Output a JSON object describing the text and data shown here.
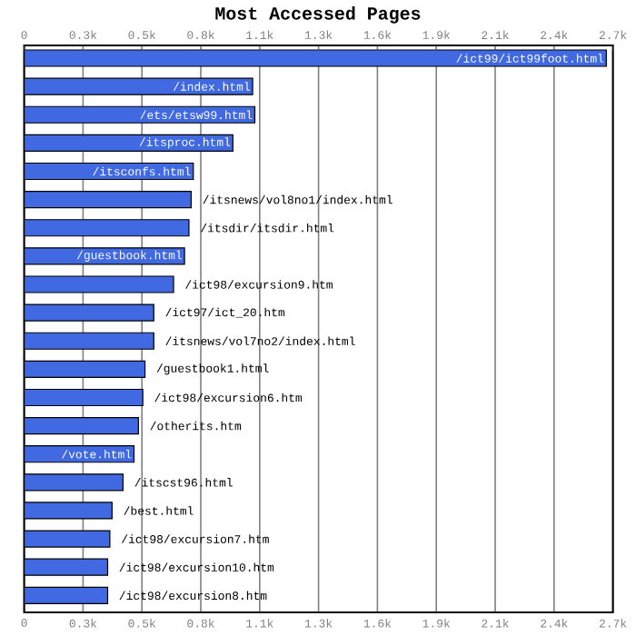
{
  "chart_data": {
    "type": "bar",
    "orientation": "horizontal",
    "title": "Most Accessed Pages",
    "categories": [
      "/ict99/ict99foot.html",
      "/index.html",
      "/ets/etsw99.html",
      "/itsproc.html",
      "/itsconfs.html",
      "/itsnews/vol8no1/index.html",
      "/itsdir/itsdir.html",
      "/guestbook.html",
      "/ict98/excursion9.htm",
      "/ict97/ict_20.htm",
      "/itsnews/vol7no2/index.html",
      "/guestbook1.html",
      "/ict98/excursion6.htm",
      "/otherits.htm",
      "/vote.html",
      "/itscst96.html",
      "/best.html",
      "/ict98/excursion7.htm",
      "/ict98/excursion10.htm",
      "/ict98/excursion8.htm"
    ],
    "values": [
      2650,
      1040,
      1050,
      950,
      770,
      760,
      750,
      730,
      680,
      590,
      590,
      550,
      540,
      520,
      500,
      450,
      400,
      390,
      380,
      380
    ],
    "color": "#4169e1",
    "xlim": [
      0,
      2680
    ],
    "xticks": [
      0,
      {
        "value": 268,
        "label": "0.3k"
      },
      {
        "value": 536,
        "label": "0.5k"
      },
      {
        "value": 804,
        "label": "0.8k"
      },
      {
        "value": 1072,
        "label": "1.1k"
      },
      {
        "value": 1340,
        "label": "1.3k"
      },
      {
        "value": 1608,
        "label": "1.6k"
      },
      {
        "value": 1876,
        "label": "1.9k"
      },
      {
        "value": 2144,
        "label": "2.1k"
      },
      {
        "value": 2412,
        "label": "2.4k"
      },
      {
        "value": 2680,
        "label": "2.7k"
      }
    ],
    "x2lim": [
      0,
      2680
    ],
    "x2ticks": [
      0,
      {
        "value": 268,
        "label": "0.3k"
      },
      {
        "value": 536,
        "label": "0.5k"
      },
      {
        "value": 804,
        "label": "0.8k"
      },
      {
        "value": 1072,
        "label": "1.1k"
      },
      {
        "value": 1340,
        "label": "1.3k"
      },
      {
        "value": 1608,
        "label": "1.6k"
      },
      {
        "value": 1876,
        "label": "1.9k"
      },
      {
        "value": 2144,
        "label": "2.1k"
      },
      {
        "value": 2412,
        "label": "2.4k"
      },
      {
        "value": 2680,
        "label": "2.7k"
      }
    ],
    "grid": "x"
  }
}
